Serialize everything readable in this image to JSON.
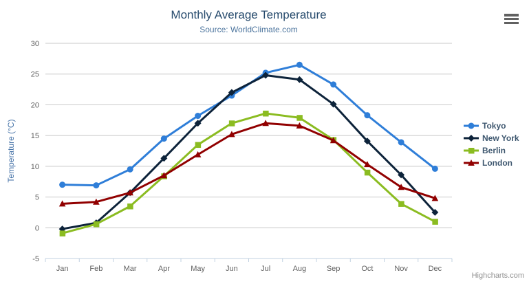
{
  "header": {
    "title": "Monthly Average Temperature",
    "subtitle": "Source: WorldClimate.com"
  },
  "menu": {
    "icon": "hamburger-icon"
  },
  "credits": {
    "label": "Highcharts.com"
  },
  "palette": {
    "title_color": "#274b6d",
    "subtitle_color": "#4d759e",
    "axis_title_color": "#4572a7",
    "tick_label_color": "#606060",
    "grid_color": "#c8c8c8",
    "axis_line_color": "#c0d0e0",
    "legend_text_color": "#3e576f",
    "credits_color": "#909090"
  },
  "chart_data": {
    "type": "line",
    "title": "Monthly Average Temperature",
    "subtitle": "Source: WorldClimate.com",
    "categories": [
      "Jan",
      "Feb",
      "Mar",
      "Apr",
      "May",
      "Jun",
      "Jul",
      "Aug",
      "Sep",
      "Oct",
      "Nov",
      "Dec"
    ],
    "xlabel": "",
    "ylabel": "Temperature (°C)",
    "ylim": [
      -5,
      30
    ],
    "ytick_interval": 5,
    "yticks": [
      -5,
      0,
      5,
      10,
      15,
      20,
      25,
      30
    ],
    "grid": true,
    "legend_position": "right",
    "series": [
      {
        "name": "Tokyo",
        "color": "#2f7ed8",
        "marker": "circle",
        "values": [
          7.0,
          6.9,
          9.5,
          14.5,
          18.2,
          21.5,
          25.2,
          26.5,
          23.3,
          18.3,
          13.9,
          9.6
        ]
      },
      {
        "name": "New York",
        "color": "#0d233a",
        "marker": "diamond",
        "values": [
          -0.2,
          0.8,
          5.7,
          11.3,
          17.0,
          22.0,
          24.8,
          24.1,
          20.1,
          14.1,
          8.6,
          2.5
        ]
      },
      {
        "name": "Berlin",
        "color": "#8bbc21",
        "marker": "square",
        "values": [
          -0.9,
          0.6,
          3.5,
          8.4,
          13.5,
          17.0,
          18.6,
          17.9,
          14.3,
          9.0,
          3.9,
          1.0
        ]
      },
      {
        "name": "London",
        "color": "#910000",
        "marker": "triangle",
        "values": [
          3.9,
          4.2,
          5.7,
          8.5,
          11.9,
          15.2,
          17.0,
          16.6,
          14.2,
          10.3,
          6.6,
          4.8
        ]
      }
    ]
  }
}
